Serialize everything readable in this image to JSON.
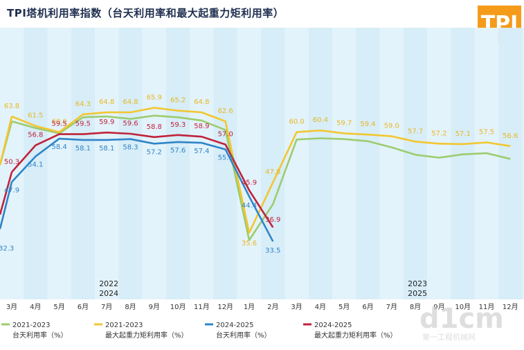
{
  "title": "TPI塔机利用率指数（台天利用率和最大起重力矩利用率）",
  "logo_text": "TPI",
  "watermark": {
    "brand": "d1cm",
    "site": "第一工程机械网"
  },
  "chart_data": {
    "type": "line",
    "title": "TPI塔机利用率指数（台天利用率和最大起重力矩利用率）",
    "categories": [
      "3月",
      "4月",
      "5月",
      "6月",
      "7月",
      "8月",
      "9月",
      "10月",
      "11月",
      "12月",
      "1月",
      "2月",
      "3月",
      "4月",
      "5月",
      "6月",
      "7月",
      "8月",
      "9月",
      "10月",
      "11月",
      "12月"
    ],
    "year_labels": [
      {
        "top": "2022",
        "bottom": "2024",
        "at_index": 4
      },
      {
        "top": "2023",
        "bottom": "2025",
        "at_index": 17
      }
    ],
    "grid": "vertical-bands",
    "legend_position": "bottom",
    "series": [
      {
        "name": "2021-2023 台天利用率（%）",
        "line1": "2021-2023",
        "line2": "台天利用率（%）",
        "color": "#9ccc6e",
        "values": [
          62.6,
          61.0,
          59.7,
          63.6,
          63.8,
          63.2,
          64.0,
          63.6,
          62.8,
          60.5,
          33.8,
          42.5,
          58.2,
          58.5,
          58.3,
          57.8,
          56.3,
          54.5,
          53.8,
          54.6,
          54.9,
          53.5
        ],
        "labels": [
          null,
          null,
          null,
          null,
          null,
          null,
          null,
          null,
          null,
          null,
          null,
          null,
          null,
          null,
          null,
          null,
          null,
          null,
          null,
          null,
          null,
          null
        ]
      },
      {
        "name": "2021-2023 最大起重力矩利用率（%）",
        "line1": "2021-2023",
        "line2": "最大起重力矩利用率（%）",
        "color": "#f3c630",
        "values": [
          63.8,
          61.5,
          60.0,
          64.3,
          64.8,
          64.8,
          65.9,
          65.2,
          64.8,
          62.6,
          35.6,
          47.8,
          60.0,
          60.4,
          59.7,
          59.4,
          59.0,
          57.7,
          57.2,
          57.1,
          57.5,
          56.6
        ],
        "labels": [
          "63.8",
          "61.5",
          "60.0",
          "64.3",
          "64.8",
          "64.8",
          "65.9",
          "65.2",
          "64.8",
          "62.6",
          "35.6",
          "47.8",
          "60.0",
          "60.4",
          "59.7",
          "59.4",
          "59.0",
          "57.7",
          "57.2",
          "57.1",
          "57.5",
          "56.6"
        ]
      },
      {
        "name": "2024-2025 台天利用率（%）",
        "line1": "2024-2025",
        "line2": "台天利用率（%）",
        "color": "#2f84c8",
        "values": [
          47.9,
          54.1,
          58.4,
          58.1,
          58.1,
          58.3,
          57.2,
          57.6,
          57.4,
          55.8,
          44.4,
          33.5,
          null,
          null,
          null,
          null,
          null,
          null,
          null,
          null,
          null,
          null
        ],
        "labels": [
          "47.9",
          "54.1",
          "58.4",
          "58.1",
          "58.1",
          "58.3",
          "57.2",
          "57.6",
          "57.4",
          "55.8",
          "44.4",
          "33.5",
          null,
          null,
          null,
          null,
          null,
          null,
          null,
          null,
          null,
          null
        ]
      },
      {
        "name": "2024-2025 最大起重力矩利用率（%）",
        "line1": "2024-2025",
        "line2": "最大起重力矩利用率（%）",
        "color": "#c0223b",
        "values": [
          50.3,
          56.8,
          59.5,
          59.5,
          59.9,
          59.6,
          58.8,
          59.3,
          58.9,
          57.0,
          45.9,
          36.9,
          null,
          null,
          null,
          null,
          null,
          null,
          null,
          null,
          null,
          null
        ],
        "labels": [
          "50.3",
          "56.8",
          "59.5",
          "59.5",
          "59.9",
          "59.6",
          "58.8",
          "59.3",
          "58.9",
          "57.0",
          "45.9",
          "36.9",
          null,
          null,
          null,
          null,
          null,
          null,
          null,
          null,
          null,
          null
        ]
      }
    ],
    "partial_labels": {
      "left_edge_blue": "32.3"
    }
  }
}
